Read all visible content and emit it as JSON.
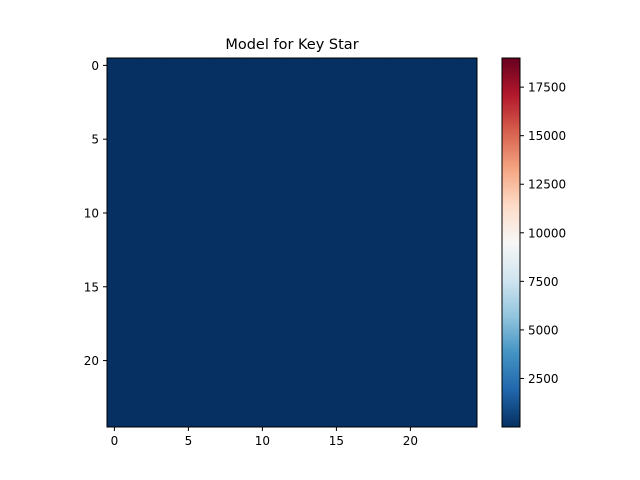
{
  "chart_data": {
    "type": "heatmap",
    "title": "Model for Key Star",
    "xlabel": "",
    "ylabel": "",
    "grid": false,
    "shape": [
      25,
      25
    ],
    "fill_value": 0,
    "x_ticks": [
      0,
      5,
      10,
      15,
      20
    ],
    "y_ticks": [
      0,
      5,
      10,
      15,
      20
    ],
    "x_tick_labels": [
      "0",
      "5",
      "10",
      "15",
      "20"
    ],
    "y_tick_labels": [
      "0",
      "5",
      "10",
      "15",
      "20"
    ],
    "colormap": "RdBu_r",
    "colorbar": {
      "vmin": 0,
      "vmax": 19000,
      "ticks": [
        2500,
        5000,
        7500,
        10000,
        12500,
        15000,
        17500
      ],
      "tick_labels": [
        "2500",
        "5000",
        "7500",
        "10000",
        "12500",
        "15000",
        "17500"
      ]
    },
    "colors": {
      "low": "#053061",
      "high": "#67001f",
      "axis": "#000000",
      "background": "#ffffff"
    }
  }
}
